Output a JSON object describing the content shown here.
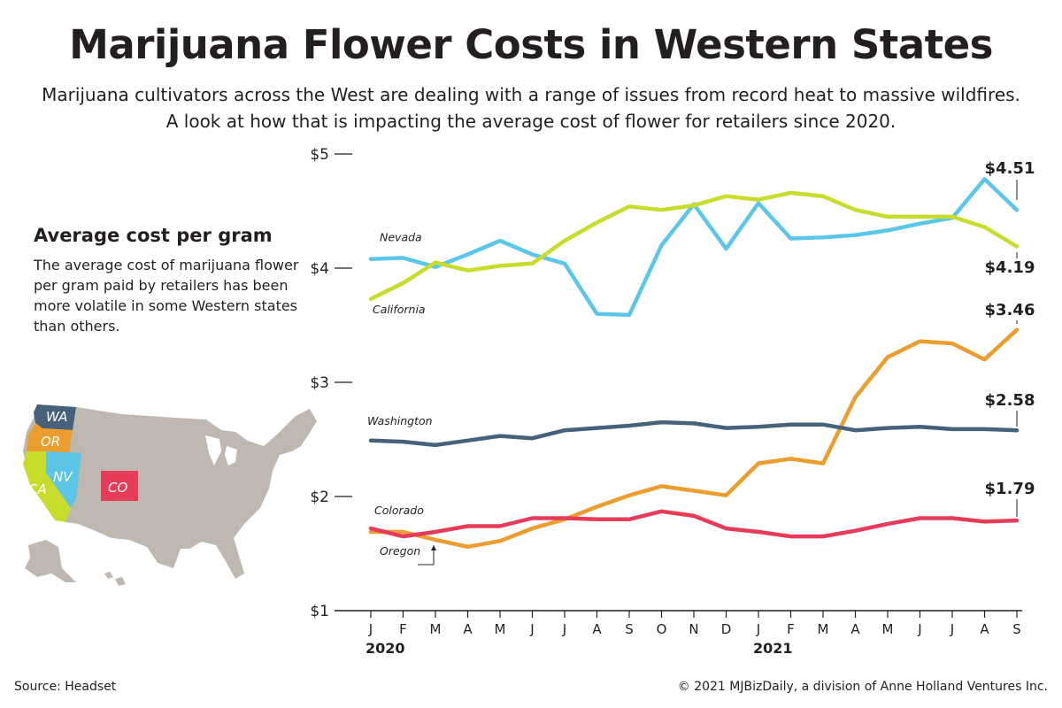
{
  "header": {
    "title": "Marijuana Flower Costs in Western States",
    "subtitle": "Marijuana cultivators across the West are dealing with a range of issues from record heat to massive wildfires. A look at how that is impacting the average cost of flower for retailers since 2020."
  },
  "sidebar": {
    "heading": "Average cost per gram",
    "text": "The average cost of marijuana flower per gram paid by retailers has been more volatile in some Western states than others."
  },
  "map": {
    "labels": [
      {
        "state": "WA",
        "color": "#45627a"
      },
      {
        "state": "OR",
        "color": "#eb9d2d"
      },
      {
        "state": "CA",
        "color": "#c8dc2c"
      },
      {
        "state": "NV",
        "color": "#5bc6e8"
      },
      {
        "state": "CO",
        "color": "#e63c5a"
      }
    ],
    "base_color": "#bfb8b1"
  },
  "footer": {
    "source": "Source: Headset",
    "credit": "© 2021 MJBizDaily, a division of Anne Holland Ventures Inc."
  },
  "chart_data": {
    "type": "line",
    "x": [
      "J",
      "F",
      "M",
      "A",
      "M",
      "J",
      "J",
      "A",
      "S",
      "O",
      "N",
      "D",
      "J",
      "F",
      "M",
      "A",
      "M",
      "J",
      "J",
      "A",
      "S"
    ],
    "year_labels": [
      {
        "index": 0,
        "label": "2020"
      },
      {
        "index": 12,
        "label": "2021"
      }
    ],
    "y_ticks": [
      {
        "value": 1,
        "label": "$1"
      },
      {
        "value": 2,
        "label": "$2"
      },
      {
        "value": 3,
        "label": "$3"
      },
      {
        "value": 4,
        "label": "$4"
      },
      {
        "value": 5,
        "label": "$5"
      }
    ],
    "ylim": [
      1,
      5
    ],
    "series": [
      {
        "name": "Nevada",
        "color": "#5bc6e8",
        "values": [
          4.08,
          4.09,
          4.01,
          4.12,
          4.24,
          4.12,
          4.04,
          3.6,
          3.59,
          4.2,
          4.56,
          4.17,
          4.57,
          4.26,
          4.27,
          4.29,
          4.33,
          4.39,
          4.44,
          4.78,
          4.51
        ],
        "end_label": "$4.51"
      },
      {
        "name": "California",
        "color": "#c8dc2c",
        "values": [
          3.73,
          3.87,
          4.05,
          3.98,
          4.02,
          4.04,
          4.24,
          4.4,
          4.54,
          4.51,
          4.55,
          4.63,
          4.6,
          4.66,
          4.63,
          4.51,
          4.45,
          4.45,
          4.45,
          4.36,
          4.19
        ],
        "end_label": "$4.19"
      },
      {
        "name": "Oregon",
        "color": "#eb9d2d",
        "values": [
          1.69,
          1.69,
          1.62,
          1.56,
          1.61,
          1.72,
          1.8,
          1.91,
          2.01,
          2.09,
          2.05,
          2.01,
          2.29,
          2.33,
          2.29,
          2.87,
          3.22,
          3.36,
          3.34,
          3.2,
          3.46
        ],
        "end_label": "$3.46"
      },
      {
        "name": "Washington",
        "color": "#45627a",
        "values": [
          2.49,
          2.48,
          2.45,
          2.49,
          2.53,
          2.51,
          2.58,
          2.6,
          2.62,
          2.65,
          2.64,
          2.6,
          2.61,
          2.63,
          2.63,
          2.58,
          2.6,
          2.61,
          2.59,
          2.59,
          2.58
        ],
        "end_label": "$2.58"
      },
      {
        "name": "Colorado",
        "color": "#e63c5a",
        "values": [
          1.72,
          1.65,
          1.69,
          1.74,
          1.74,
          1.81,
          1.81,
          1.8,
          1.8,
          1.87,
          1.83,
          1.72,
          1.69,
          1.65,
          1.65,
          1.7,
          1.76,
          1.81,
          1.81,
          1.78,
          1.79
        ],
        "end_label": "$1.79"
      }
    ]
  }
}
